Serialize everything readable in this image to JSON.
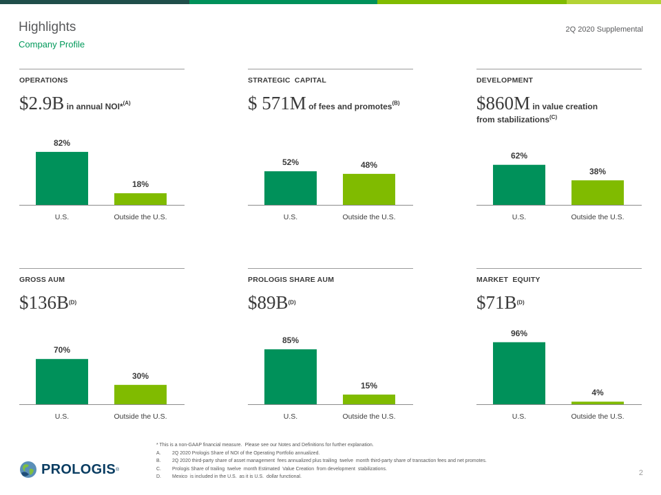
{
  "header": {
    "title": "Highlights",
    "subtitle": "Company Profile",
    "right": "2Q 2020 Supplemental"
  },
  "colors": {
    "bar_us": "#00915a",
    "bar_outside": "#80bb00",
    "topbar": [
      "#1f4e4a",
      "#00915a",
      "#80bb00",
      "#b3d334"
    ]
  },
  "panels": [
    {
      "heading": "OPERATIONS",
      "value": "$2.9B",
      "desc": " in annual NOI*",
      "note": "(A)",
      "line2": "",
      "chart_data": {
        "type": "bar",
        "categories": [
          "U.S.",
          "Outside the U.S."
        ],
        "values": [
          82,
          18
        ],
        "labels": [
          "82%",
          "18%"
        ]
      }
    },
    {
      "heading": "STRATEGIC  CAPITAL",
      "value": "$ 571M",
      "desc": " of fees and promotes",
      "note": "(B)",
      "line2": "",
      "chart_data": {
        "type": "bar",
        "categories": [
          "U.S.",
          "Outside the U.S."
        ],
        "values": [
          52,
          48
        ],
        "labels": [
          "52%",
          "48%"
        ]
      }
    },
    {
      "heading": "DEVELOPMENT",
      "value": "$860M",
      "desc": " in value creation",
      "note": "",
      "line2": "from stabilizations",
      "line2_note": "(C)",
      "chart_data": {
        "type": "bar",
        "categories": [
          "U.S.",
          "Outside the U.S."
        ],
        "values": [
          62,
          38
        ],
        "labels": [
          "62%",
          "38%"
        ]
      }
    },
    {
      "heading": "GROSS AUM",
      "value": "$136B",
      "desc": "",
      "note": "(D)",
      "line2": "",
      "chart_data": {
        "type": "bar",
        "categories": [
          "U.S.",
          "Outside the U.S."
        ],
        "values": [
          70,
          30
        ],
        "labels": [
          "70%",
          "30%"
        ]
      }
    },
    {
      "heading": "PROLOGIS SHARE AUM",
      "value": "$89B",
      "desc": "",
      "note": "(D)",
      "line2": "",
      "chart_data": {
        "type": "bar",
        "categories": [
          "U.S.",
          "Outside the U.S."
        ],
        "values": [
          85,
          15
        ],
        "labels": [
          "85%",
          "15%"
        ]
      }
    },
    {
      "heading": "MARKET  EQUITY",
      "value": "$71B",
      "desc": "",
      "note": "(D)",
      "line2": "",
      "chart_data": {
        "type": "bar",
        "categories": [
          "U.S.",
          "Outside the U.S."
        ],
        "values": [
          96,
          4
        ],
        "labels": [
          "96%",
          "4%"
        ]
      }
    }
  ],
  "footnotes": {
    "intro": "* This is a non-GAAP financial measure.  Please see our Notes and Definitions for further explanation.",
    "items": [
      {
        "key": "A.",
        "text": "2Q 2020 Prologis Share of NOI of the Operating Portfolio annualized."
      },
      {
        "key": "B.",
        "text": "2Q 2020 third-party share of asset management  fees annualized plus trailing  twelve  month third-party share of transaction fees and net promotes."
      },
      {
        "key": "C.",
        "text": "Prologis Share of trailing  twelve  month Estimated  Value Creation  from development  stabilizations."
      },
      {
        "key": "D.",
        "text": "Mexico  is included in the U.S.  as it is U.S.  dollar functional."
      }
    ]
  },
  "logo": {
    "icon": "globe-icon",
    "word": "PROLOGIS",
    "reg": "®"
  },
  "page_number": "2"
}
